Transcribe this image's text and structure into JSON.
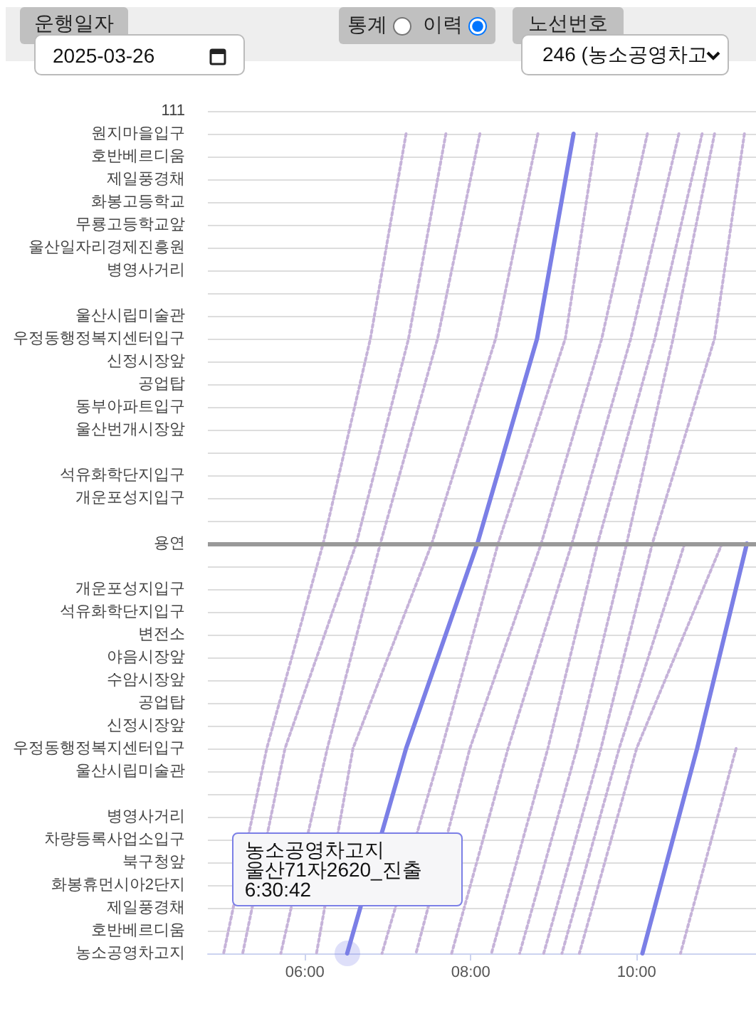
{
  "chart_data": {
    "type": "line",
    "orientation": "horizontal",
    "grid": "y",
    "marker": "none",
    "line_style": "dotted",
    "categories": [
      "111",
      "원지마을입구",
      "호반베르디움",
      "제일풍경채",
      "화봉고등학교",
      "무룡고등학교앞",
      "울산일자리경제진흥원",
      "병영사거리",
      null,
      "울산시립미술관",
      "우정동행정복지센터입구",
      "신정시장앞",
      "공업탑",
      "동부아파트입구",
      "울산번개시장앞",
      null,
      "석유화학단지입구",
      "개운포성지입구",
      null,
      "용연",
      null,
      "개운포성지입구",
      "석유화학단지입구",
      "변전소",
      "야음시장앞",
      "수암시장앞",
      "공업탑",
      "신정시장앞",
      "우정동행정복지센터입구",
      "울산시립미술관",
      null,
      "병영사거리",
      "차량등록사업소입구",
      "북구청앞",
      "화봉휴먼시아2단지",
      "제일풍경채",
      "호반베르디움",
      "농소공영차고지"
    ],
    "xlim": [
      4.83,
      11.44
    ],
    "xticks": [
      {
        "value": 6,
        "label": "06:00"
      },
      {
        "value": 8,
        "label": "08:00"
      },
      {
        "value": 10,
        "label": "10:00"
      }
    ],
    "ref_lines": [
      {
        "axis": "y",
        "value": "용연",
        "color": "#999999"
      }
    ],
    "annotations": [
      "운행일자",
      "2025-03-26",
      "통계",
      "이력",
      "노선번호",
      "246 (농소공영차고",
      {
        "text": "농소공영차고지\n울산71자2620_진출\n6:30:42",
        "x": 6.51,
        "y": "농소공영차고지"
      }
    ],
    "series": [
      {
        "color": "#c6b3d9",
        "values": [
          null,
          7.22,
          null,
          null,
          null,
          null,
          null,
          null,
          null,
          null,
          6.79,
          null,
          null,
          null,
          null,
          null,
          null,
          null,
          null,
          6.22,
          null,
          null,
          null,
          null,
          null,
          null,
          null,
          null,
          5.54,
          null,
          null,
          null,
          null,
          null,
          null,
          null,
          null,
          5.02
        ]
      },
      {
        "color": "#c6b3d9",
        "values": [
          null,
          7.7,
          null,
          null,
          null,
          null,
          null,
          null,
          null,
          null,
          7.25,
          null,
          null,
          null,
          null,
          null,
          null,
          null,
          null,
          6.62,
          null,
          null,
          null,
          null,
          null,
          null,
          null,
          null,
          5.76,
          null,
          null,
          null,
          null,
          null,
          null,
          null,
          null,
          5.25
        ]
      },
      {
        "color": "#c6b3d9",
        "values": [
          null,
          8.11,
          null,
          null,
          null,
          null,
          null,
          null,
          null,
          null,
          7.6,
          null,
          null,
          null,
          null,
          null,
          null,
          null,
          null,
          6.91,
          null,
          null,
          null,
          null,
          null,
          null,
          null,
          null,
          6.27,
          null,
          null,
          null,
          null,
          null,
          null,
          null,
          null,
          5.71
        ]
      },
      {
        "color": "#c6b3d9",
        "values": [
          null,
          8.81,
          null,
          null,
          null,
          null,
          null,
          null,
          null,
          null,
          8.3,
          null,
          null,
          null,
          null,
          null,
          null,
          null,
          null,
          7.53,
          null,
          null,
          null,
          null,
          null,
          null,
          null,
          null,
          6.58,
          null,
          null,
          null,
          null,
          null,
          null,
          null,
          null,
          6.14
        ]
      },
      {
        "color": "#7b7fe6",
        "line_style": "solid",
        "values": [
          null,
          9.24,
          null,
          null,
          null,
          null,
          null,
          null,
          null,
          null,
          8.8,
          null,
          null,
          null,
          null,
          null,
          null,
          null,
          null,
          8.08,
          null,
          null,
          null,
          null,
          null,
          null,
          null,
          null,
          7.22,
          null,
          null,
          null,
          null,
          null,
          null,
          null,
          null,
          6.51
        ]
      },
      {
        "color": "#c6b3d9",
        "values": [
          null,
          9.52,
          null,
          null,
          null,
          null,
          null,
          null,
          null,
          null,
          9.14,
          null,
          null,
          null,
          null,
          null,
          null,
          null,
          null,
          8.33,
          null,
          null,
          null,
          null,
          null,
          null,
          null,
          null,
          7.65,
          null,
          null,
          null,
          null,
          null,
          null,
          null,
          null,
          6.93
        ]
      },
      {
        "color": "#c6b3d9",
        "values": [
          null,
          10.13,
          null,
          null,
          null,
          null,
          null,
          null,
          null,
          null,
          9.58,
          null,
          null,
          null,
          null,
          null,
          null,
          null,
          null,
          8.85,
          null,
          null,
          null,
          null,
          null,
          null,
          null,
          null,
          7.99,
          null,
          null,
          null,
          null,
          null,
          null,
          null,
          null,
          7.34
        ]
      },
      {
        "color": "#c6b3d9",
        "values": [
          null,
          10.51,
          null,
          null,
          null,
          null,
          null,
          null,
          null,
          null,
          9.93,
          null,
          null,
          null,
          null,
          null,
          null,
          null,
          null,
          9.22,
          null,
          null,
          null,
          null,
          null,
          null,
          null,
          null,
          8.45,
          null,
          null,
          null,
          null,
          null,
          null,
          null,
          null,
          7.77
        ]
      },
      {
        "color": "#c6b3d9",
        "values": [
          null,
          10.79,
          null,
          null,
          null,
          null,
          null,
          null,
          null,
          null,
          10.22,
          null,
          null,
          null,
          null,
          null,
          null,
          null,
          null,
          9.53,
          null,
          null,
          null,
          null,
          null,
          null,
          null,
          null,
          8.93,
          null,
          null,
          null,
          null,
          null,
          null,
          null,
          null,
          8.25
        ]
      },
      {
        "color": "#c6b3d9",
        "values": [
          null,
          10.94,
          null,
          null,
          null,
          null,
          null,
          null,
          null,
          null,
          10.44,
          null,
          null,
          null,
          null,
          null,
          null,
          null,
          null,
          9.88,
          null,
          null,
          null,
          null,
          null,
          null,
          null,
          null,
          9.28,
          null,
          null,
          null,
          null,
          null,
          null,
          null,
          null,
          8.59
        ]
      },
      {
        "color": "#c6b3d9",
        "values": [
          null,
          11.3,
          null,
          null,
          null,
          null,
          null,
          null,
          null,
          null,
          10.94,
          null,
          null,
          null,
          null,
          null,
          null,
          null,
          null,
          10.19,
          null,
          null,
          null,
          null,
          null,
          null,
          null,
          null,
          9.57,
          null,
          null,
          null,
          null,
          null,
          null,
          null,
          null,
          8.88
        ]
      },
      {
        "color": "#c6b3d9",
        "values": [
          null,
          null,
          null,
          null,
          null,
          null,
          null,
          null,
          null,
          null,
          null,
          null,
          null,
          null,
          null,
          null,
          null,
          null,
          null,
          10.58,
          null,
          null,
          null,
          null,
          null,
          null,
          null,
          null,
          9.79,
          null,
          null,
          null,
          null,
          null,
          null,
          null,
          null,
          9.1
        ]
      },
      {
        "color": "#c6b3d9",
        "values": [
          null,
          null,
          null,
          null,
          null,
          null,
          null,
          null,
          null,
          null,
          null,
          null,
          null,
          null,
          null,
          null,
          null,
          null,
          null,
          11.03,
          null,
          null,
          null,
          null,
          null,
          null,
          null,
          null,
          10.0,
          null,
          null,
          null,
          null,
          null,
          null,
          null,
          null,
          9.31
        ]
      },
      {
        "color": "#7b7fe6",
        "line_style": "solid",
        "values": [
          null,
          null,
          null,
          null,
          null,
          null,
          null,
          null,
          null,
          null,
          null,
          null,
          null,
          null,
          null,
          null,
          null,
          null,
          null,
          11.33,
          null,
          null,
          null,
          null,
          null,
          null,
          null,
          null,
          10.73,
          null,
          null,
          null,
          null,
          null,
          null,
          null,
          null,
          10.07
        ]
      },
      {
        "color": "#c6b3d9",
        "values": [
          null,
          null,
          null,
          null,
          null,
          null,
          null,
          null,
          null,
          null,
          null,
          null,
          null,
          null,
          null,
          null,
          null,
          null,
          null,
          null,
          null,
          null,
          null,
          null,
          null,
          null,
          null,
          null,
          11.2,
          null,
          null,
          null,
          null,
          null,
          null,
          null,
          null,
          10.53
        ]
      }
    ]
  }
}
